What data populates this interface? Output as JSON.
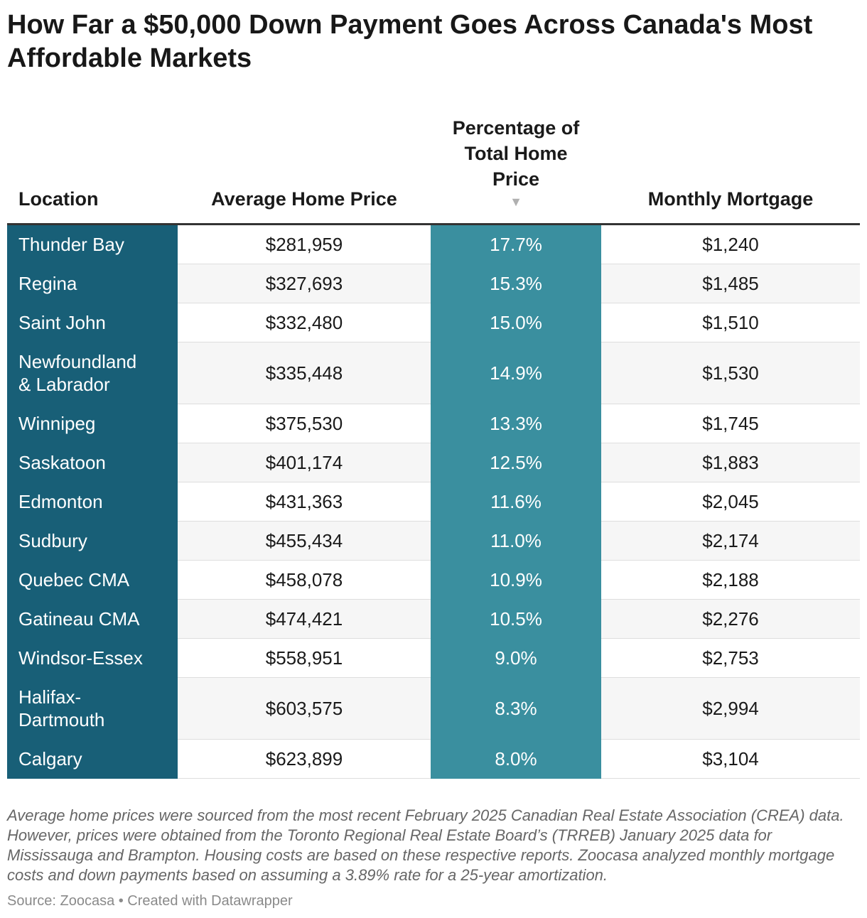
{
  "title": "How Far a $50,000 Down Payment Goes Across Canada's Most Affordable Markets",
  "columns": {
    "location": "Location",
    "price": "Average Home Price",
    "pct": "Percentage of Total Home Price",
    "mortgage": "Monthly Mortgage",
    "sort_glyph": "▼"
  },
  "chart_data": {
    "type": "table",
    "headers": [
      "Location",
      "Average Home Price",
      "Percentage of Total Home Price",
      "Monthly Mortgage"
    ],
    "sorted_by": "Percentage of Total Home Price",
    "sort_order": "descending",
    "rows": [
      {
        "location": "Thunder Bay",
        "price": "$281,959",
        "pct": "17.7%",
        "mortgage": "$1,240"
      },
      {
        "location": "Regina",
        "price": "$327,693",
        "pct": "15.3%",
        "mortgage": "$1,485"
      },
      {
        "location": "Saint John",
        "price": "$332,480",
        "pct": "15.0%",
        "mortgage": "$1,510"
      },
      {
        "location": "Newfoundland & Labrador",
        "price": "$335,448",
        "pct": "14.9%",
        "mortgage": "$1,530"
      },
      {
        "location": "Winnipeg",
        "price": "$375,530",
        "pct": "13.3%",
        "mortgage": "$1,745"
      },
      {
        "location": "Saskatoon",
        "price": "$401,174",
        "pct": "12.5%",
        "mortgage": "$1,883"
      },
      {
        "location": "Edmonton",
        "price": "$431,363",
        "pct": "11.6%",
        "mortgage": "$2,045"
      },
      {
        "location": "Sudbury",
        "price": "$455,434",
        "pct": "11.0%",
        "mortgage": "$2,174"
      },
      {
        "location": "Quebec CMA",
        "price": "$458,078",
        "pct": "10.9%",
        "mortgage": "$2,188"
      },
      {
        "location": "Gatineau CMA",
        "price": "$474,421",
        "pct": "10.5%",
        "mortgage": "$2,276"
      },
      {
        "location": "Windsor-Essex",
        "price": "$558,951",
        "pct": "9.0%",
        "mortgage": "$2,753"
      },
      {
        "location": "Halifax-Dartmouth",
        "price": "$603,575",
        "pct": "8.3%",
        "mortgage": "$2,994"
      },
      {
        "location": "Calgary",
        "price": "$623,899",
        "pct": "8.0%",
        "mortgage": "$3,104"
      }
    ]
  },
  "colors": {
    "location_column": "#185f77",
    "percentage_column": "#3a8f9f",
    "header_rule": "#333333"
  },
  "notes": "Average home prices were sourced from the most recent February 2025 Canadian Real Estate Association (CREA) data. However, prices were obtained from the Toronto Regional Real Estate Board’s (TRREB) January 2025 data for Mississauga and Brampton. Housing costs are based on these respective reports. Zoocasa analyzed monthly mortgage costs and down payments based on assuming a 3.89% rate for a 25-year amortization.",
  "source": "Source: Zoocasa • Created with Datawrapper"
}
